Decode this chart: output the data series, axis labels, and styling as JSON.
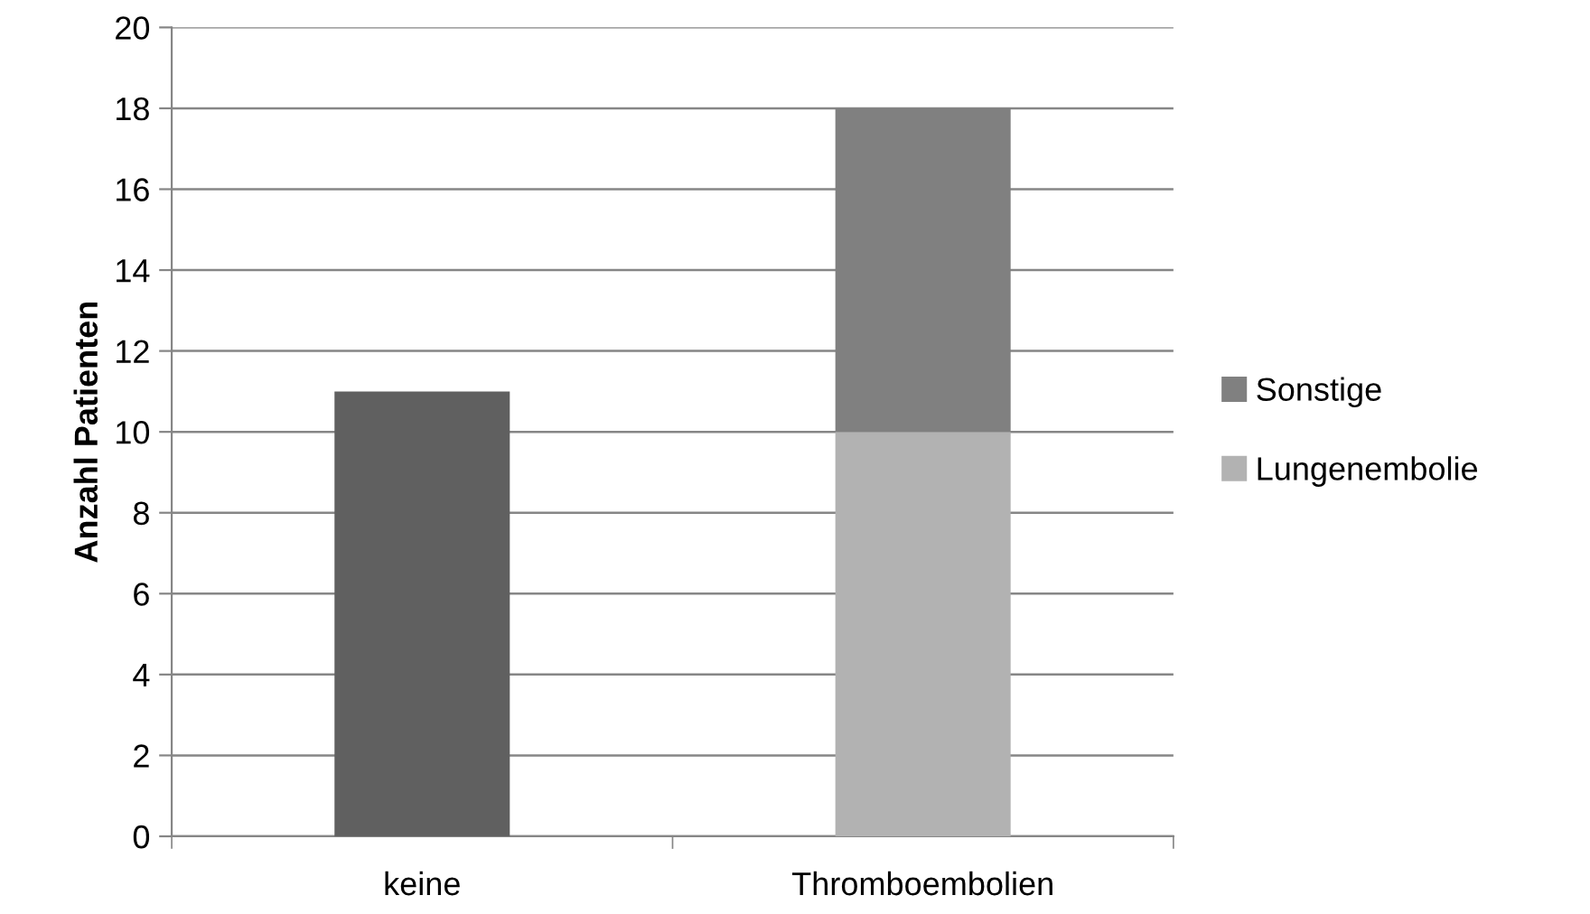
{
  "chart_data": {
    "type": "bar",
    "stacked": true,
    "ylabel": "Anzahl Patienten",
    "categories": [
      "keine",
      "Thromboembolien"
    ],
    "series": [
      {
        "color": "#606060",
        "values": [
          11,
          null
        ]
      },
      {
        "name": "Lungenembolie",
        "color": "#b2b2b2",
        "values": [
          null,
          10
        ]
      },
      {
        "name": "Sonstige",
        "color": "#808080",
        "values": [
          null,
          8
        ]
      }
    ],
    "ylim": [
      0,
      20
    ],
    "yticks": [
      0,
      2,
      4,
      6,
      8,
      10,
      12,
      14,
      16,
      18,
      20
    ],
    "grid": "y",
    "legend": "right"
  }
}
